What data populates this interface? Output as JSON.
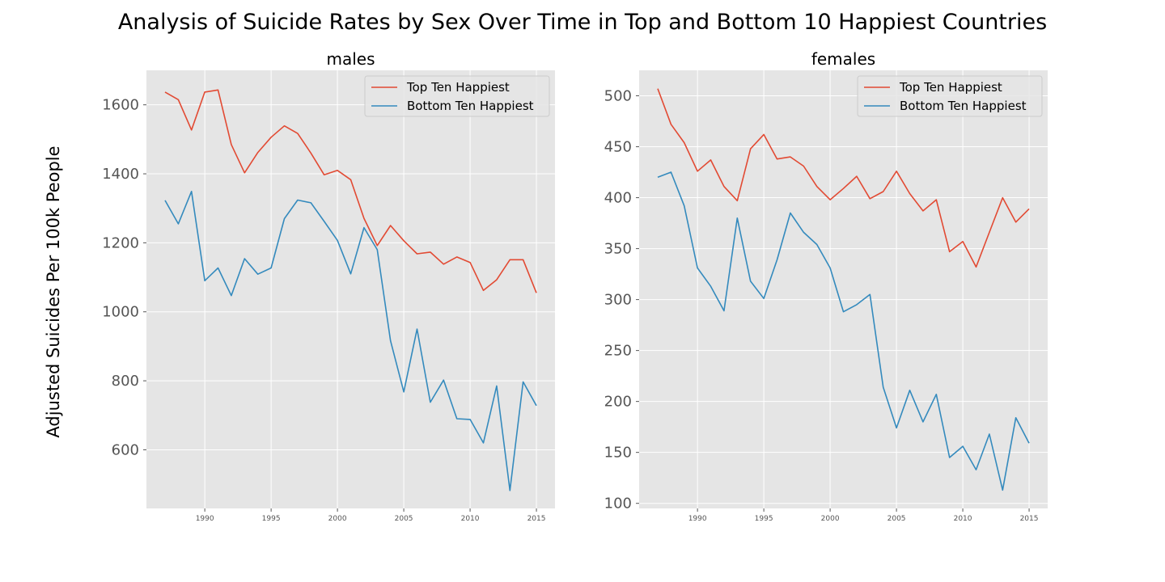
{
  "figure": {
    "title": "Analysis of Suicide Rates by Sex Over Time in Top and Bottom 10 Happiest Countries",
    "ylabel": "Adjusted Suicides Per 100k People"
  },
  "colors": {
    "top": "#E24A33",
    "bottom": "#348ABD",
    "axes_bg": "#E5E5E5",
    "grid": "#FFFFFF",
    "tick_text": "#555555"
  },
  "chart_data": [
    {
      "type": "line",
      "title": "males",
      "grid": true,
      "legend_position": "top-right",
      "xticks": [
        1990,
        1995,
        2000,
        2005,
        2010,
        2015
      ],
      "yticks": [
        600,
        800,
        1000,
        1200,
        1400,
        1600
      ],
      "xlim": [
        1985.6,
        2016.4
      ],
      "ylim": [
        430,
        1700
      ],
      "x": [
        1987,
        1988,
        1989,
        1990,
        1991,
        1992,
        1993,
        1994,
        1995,
        1996,
        1997,
        1998,
        1999,
        2000,
        2001,
        2002,
        2003,
        2004,
        2005,
        2006,
        2007,
        2008,
        2009,
        2010,
        2011,
        2012,
        2013,
        2014,
        2015
      ],
      "series": [
        {
          "name": "Top Ten Happiest",
          "color": "#E24A33",
          "values": [
            1637,
            1615,
            1527,
            1637,
            1643,
            1485,
            1403,
            1462,
            1506,
            1539,
            1517,
            1460,
            1397,
            1410,
            1383,
            1271,
            1192,
            1250,
            1206,
            1168,
            1173,
            1138,
            1159,
            1143,
            1062,
            1093,
            1151,
            1151,
            1055
          ]
        },
        {
          "name": "Bottom Ten Happiest",
          "color": "#348ABD",
          "values": [
            1323,
            1255,
            1349,
            1090,
            1127,
            1047,
            1154,
            1109,
            1127,
            1270,
            1324,
            1316,
            1262,
            1207,
            1110,
            1244,
            1180,
            916,
            768,
            950,
            738,
            802,
            690,
            688,
            620,
            785,
            482,
            797,
            728
          ]
        }
      ]
    },
    {
      "type": "line",
      "title": "females",
      "grid": true,
      "legend_position": "top-right",
      "xticks": [
        1990,
        1995,
        2000,
        2005,
        2010,
        2015
      ],
      "yticks": [
        100,
        150,
        200,
        250,
        300,
        350,
        400,
        450,
        500
      ],
      "xlim": [
        1985.6,
        2016.4
      ],
      "ylim": [
        95,
        525
      ],
      "x": [
        1987,
        1988,
        1989,
        1990,
        1991,
        1992,
        1993,
        1994,
        1995,
        1996,
        1997,
        1998,
        1999,
        2000,
        2001,
        2002,
        2003,
        2004,
        2005,
        2006,
        2007,
        2008,
        2009,
        2010,
        2011,
        2012,
        2013,
        2014,
        2015
      ],
      "series": [
        {
          "name": "Top Ten Happiest",
          "color": "#E24A33",
          "values": [
            507,
            472,
            454,
            426,
            437,
            411,
            397,
            448,
            462,
            438,
            440,
            431,
            411,
            398,
            409,
            421,
            399,
            406,
            426,
            404,
            387,
            398,
            347,
            357,
            332,
            366,
            400,
            376,
            389
          ]
        },
        {
          "name": "Bottom Ten Happiest",
          "color": "#348ABD",
          "values": [
            420,
            425,
            392,
            331,
            313,
            289,
            380,
            318,
            301,
            339,
            385,
            366,
            354,
            331,
            288,
            295,
            305,
            214,
            174,
            211,
            180,
            207,
            145,
            156,
            133,
            168,
            113,
            184,
            159
          ]
        }
      ]
    }
  ]
}
